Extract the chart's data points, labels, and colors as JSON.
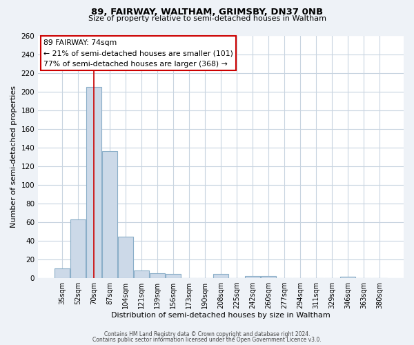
{
  "title": "89, FAIRWAY, WALTHAM, GRIMSBY, DN37 0NB",
  "subtitle": "Size of property relative to semi-detached houses in Waltham",
  "xlabel": "Distribution of semi-detached houses by size in Waltham",
  "ylabel": "Number of semi-detached properties",
  "bar_categories": [
    "35sqm",
    "52sqm",
    "70sqm",
    "87sqm",
    "104sqm",
    "121sqm",
    "139sqm",
    "156sqm",
    "173sqm",
    "190sqm",
    "208sqm",
    "225sqm",
    "242sqm",
    "260sqm",
    "277sqm",
    "294sqm",
    "311sqm",
    "329sqm",
    "346sqm",
    "363sqm",
    "380sqm"
  ],
  "bar_values": [
    10,
    63,
    205,
    136,
    44,
    8,
    5,
    4,
    0,
    0,
    4,
    0,
    2,
    2,
    0,
    0,
    0,
    0,
    1,
    0,
    0
  ],
  "bar_color": "#ccd9e8",
  "bar_edge_color": "#8aaec8",
  "ylim": [
    0,
    260
  ],
  "yticks": [
    0,
    20,
    40,
    60,
    80,
    100,
    120,
    140,
    160,
    180,
    200,
    220,
    240,
    260
  ],
  "annotation_text_line1": "89 FAIRWAY: 74sqm",
  "annotation_text_line2": "← 21% of semi-detached houses are smaller (101)",
  "annotation_text_line3": "77% of semi-detached houses are larger (368) →",
  "footer_line1": "Contains HM Land Registry data © Crown copyright and database right 2024.",
  "footer_line2": "Contains public sector information licensed under the Open Government Licence v3.0.",
  "bg_color": "#eef2f7",
  "plot_bg_color": "#ffffff",
  "grid_color": "#c8d4e0",
  "red_line_color": "#cc0000",
  "box_edge_color": "#cc0000",
  "box_fill_color": "#ffffff"
}
